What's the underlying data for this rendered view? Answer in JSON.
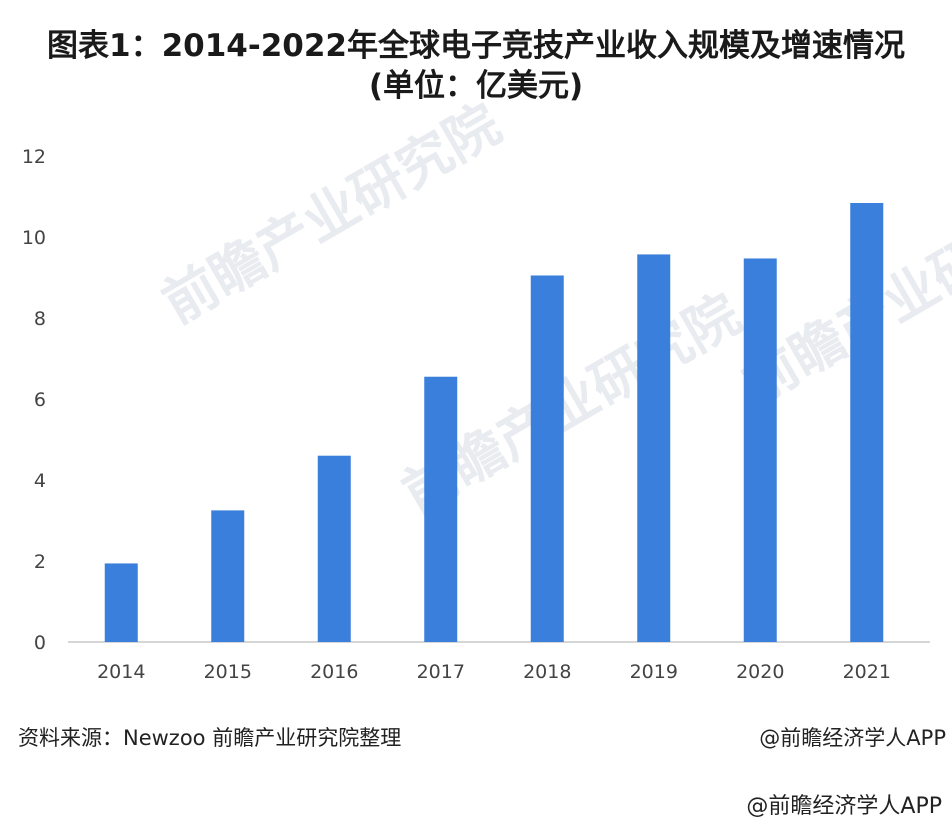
{
  "header": {
    "title_line1": "图表1：2014-2022年全球电子竞技产业收入规模及增速情况",
    "title_line2": "(单位：亿美元)"
  },
  "watermark": {
    "text": "前瞻产业研究院"
  },
  "footer": {
    "source": "资料来源：Newzoo 前瞻产业研究院整理",
    "credit": "@前瞻经济学人APP",
    "credit_bottom": "@前瞻经济学人APP"
  },
  "colors": {
    "bar": "#3a7fdc",
    "axis": "#c8c8c8",
    "text": "#444444"
  },
  "chart_data": {
    "type": "bar",
    "title": "",
    "xlabel": "",
    "ylabel": "",
    "categories": [
      "2014",
      "2015",
      "2016",
      "2017",
      "2018",
      "2019",
      "2020",
      "2021"
    ],
    "values": [
      1.94,
      3.25,
      4.6,
      6.55,
      9.05,
      9.57,
      9.47,
      10.84
    ],
    "ylim": [
      0,
      12
    ],
    "yticks": [
      0,
      2,
      4,
      6,
      8,
      10,
      12
    ],
    "grid": false,
    "legend": "none"
  }
}
